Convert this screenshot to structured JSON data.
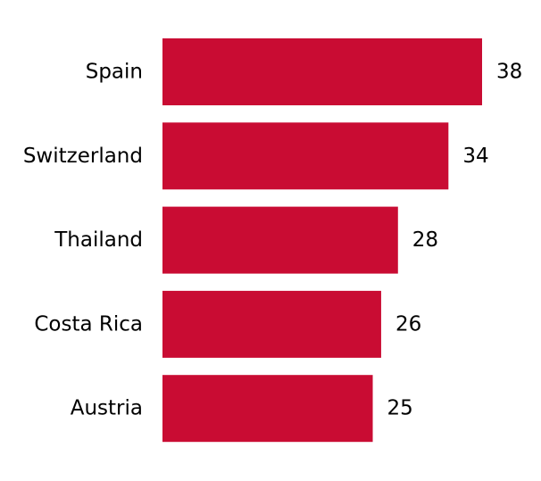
{
  "chart_data": {
    "type": "bar",
    "orientation": "horizontal",
    "categories": [
      "Spain",
      "Switzerland",
      "Thailand",
      "Costa Rica",
      "Austria"
    ],
    "values": [
      38,
      34,
      28,
      26,
      25
    ],
    "title": "",
    "xlabel": "",
    "ylabel": "",
    "xlim": [
      0,
      38
    ],
    "grid": false,
    "axes_visible": false,
    "data_labels": true,
    "bar_color": "#c90c33"
  }
}
